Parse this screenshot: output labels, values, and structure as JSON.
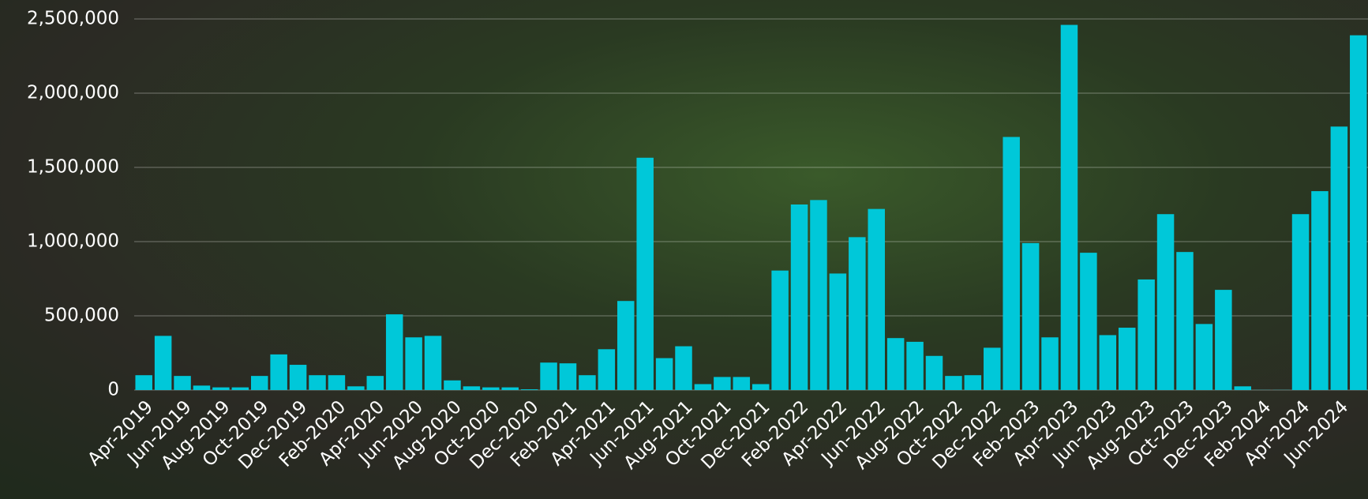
{
  "chart_data": {
    "type": "bar",
    "color": "#00c8d9",
    "categories": [
      "Apr-2019",
      null,
      "Jun-2019",
      null,
      "Aug-2019",
      null,
      "Oct-2019",
      null,
      "Dec-2019",
      null,
      "Feb-2020",
      null,
      "Apr-2020",
      null,
      "Jun-2020",
      null,
      "Aug-2020",
      null,
      "Oct-2020",
      null,
      "Dec-2020",
      null,
      "Feb-2021",
      null,
      "Apr-2021",
      null,
      "Jun-2021",
      null,
      "Aug-2021",
      null,
      "Oct-2021",
      null,
      "Dec-2021",
      null,
      "Feb-2022",
      null,
      "Apr-2022",
      null,
      "Jun-2022",
      null,
      "Aug-2022",
      null,
      "Oct-2022",
      null,
      "Dec-2022",
      null,
      "Feb-2023",
      null,
      "Apr-2023",
      null,
      "Jun-2023",
      null,
      "Aug-2023",
      null,
      "Oct-2023",
      null,
      "Dec-2023",
      null,
      "Feb-2024",
      null,
      "Apr-2024",
      null,
      "Jun-2024",
      null
    ],
    "values": [
      100000,
      365000,
      95000,
      30000,
      18000,
      18000,
      95000,
      240000,
      170000,
      100000,
      100000,
      25000,
      95000,
      510000,
      355000,
      365000,
      65000,
      25000,
      18000,
      18000,
      5000,
      185000,
      180000,
      100000,
      275000,
      600000,
      1565000,
      215000,
      295000,
      40000,
      88000,
      88000,
      40000,
      805000,
      1250000,
      1280000,
      785000,
      1030000,
      1220000,
      350000,
      325000,
      230000,
      95000,
      100000,
      285000,
      1705000,
      990000,
      355000,
      2460000,
      925000,
      370000,
      420000,
      745000,
      1185000,
      930000,
      445000,
      675000,
      25000,
      1000,
      1000,
      1185000,
      1340000,
      1775000,
      2390000
    ],
    "ylim": [
      0,
      2500000
    ],
    "yticks": [
      0,
      {
        "value": 500000,
        "label": "500,000"
      },
      {
        "value": 1000000,
        "label": "1,000,000"
      },
      {
        "value": 1500000,
        "label": "1,500,000"
      },
      {
        "value": 2000000,
        "label": "2,000,000"
      },
      {
        "value": 2500000,
        "label": "2,500,000"
      }
    ],
    "grid": true
  }
}
